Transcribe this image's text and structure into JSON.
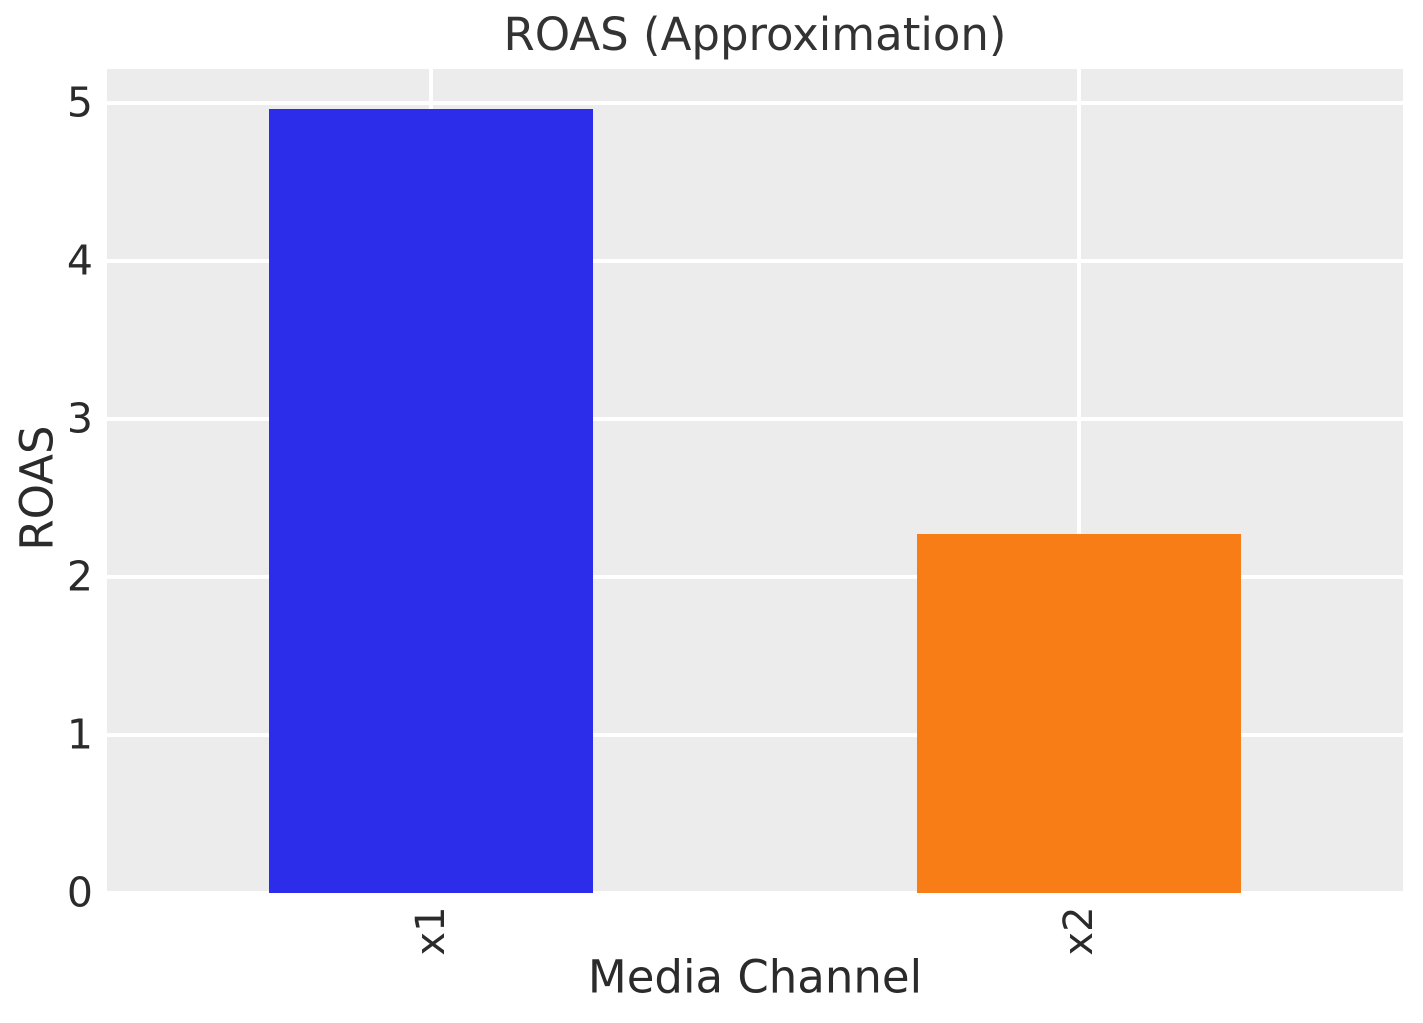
{
  "chart_data": {
    "type": "bar",
    "title": "ROAS (Approximation)",
    "xlabel": "Media Channel",
    "ylabel": "ROAS",
    "categories": [
      "x1",
      "x2"
    ],
    "values": [
      4.96,
      2.27
    ],
    "bar_colors": [
      "#2b2dea",
      "#f97d16"
    ],
    "ylim": [
      0,
      5.215
    ],
    "y_ticks": [
      0,
      1,
      2,
      3,
      4,
      5
    ],
    "x_tick_rotation_deg": 90,
    "grid": "on",
    "legend": "none",
    "plot_background": "#ececec",
    "grid_color": "#ffffff",
    "text_color": "#2b2b2b"
  }
}
